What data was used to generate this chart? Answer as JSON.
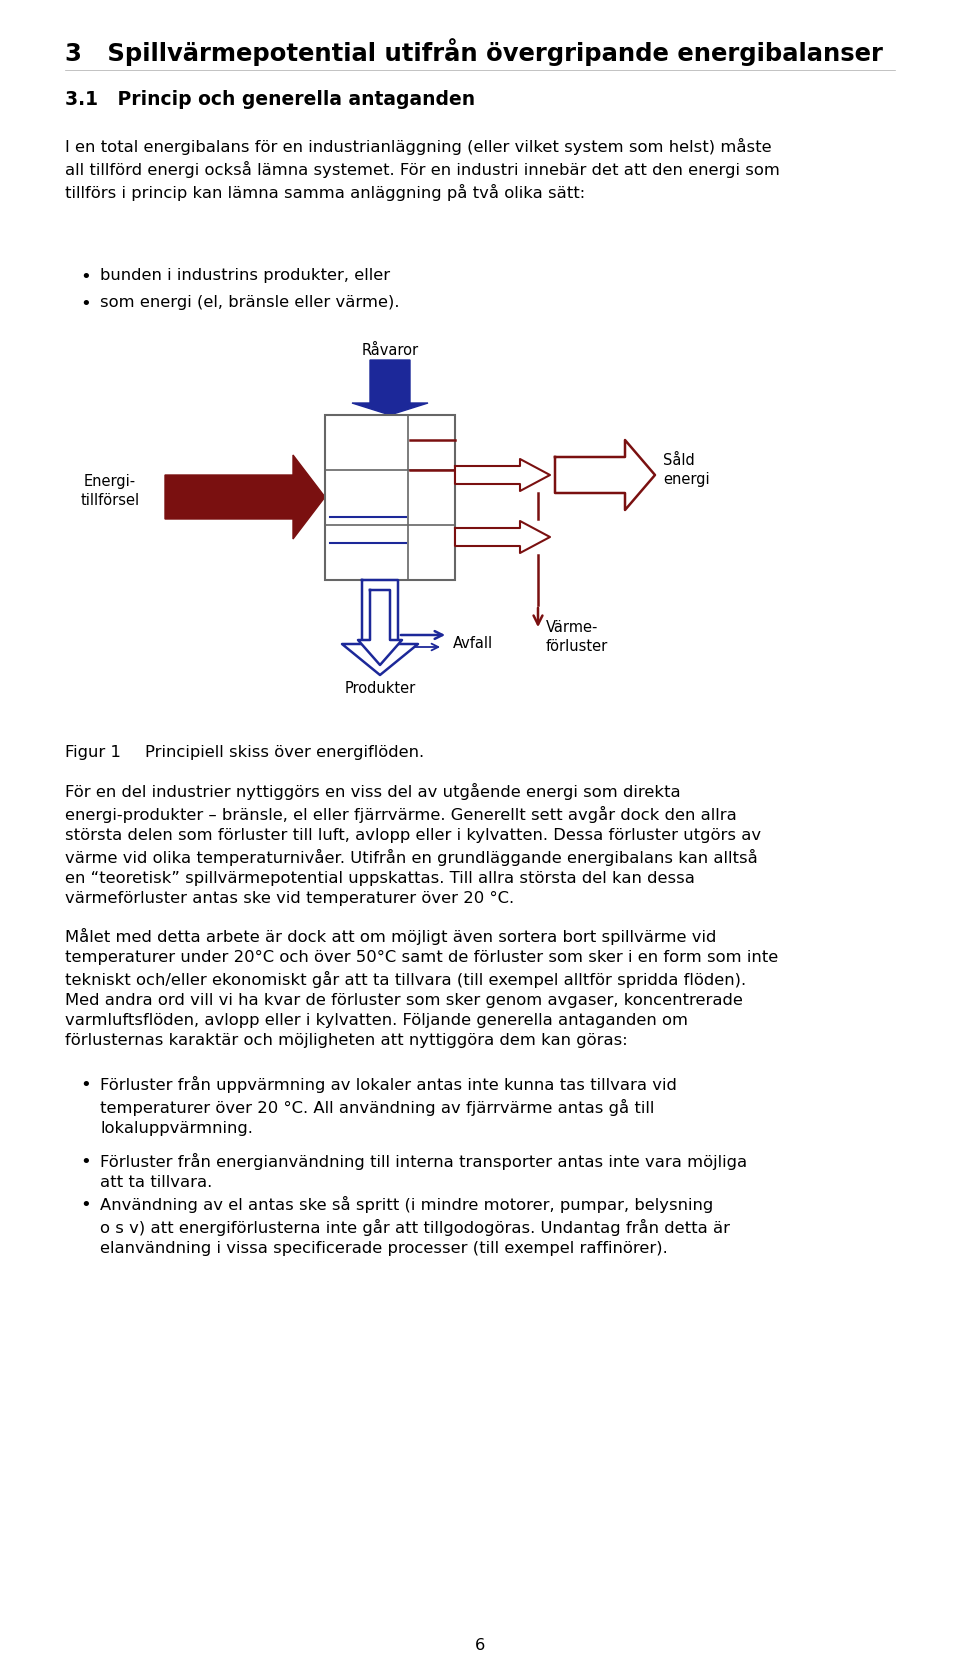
{
  "title": "3   Spillvärmepotential utifrån övergripande energibalanser",
  "section_title": "3.1   Princip och generella antaganden",
  "para1": "I en total energibalans för en industrianläggning (eller vilket system som helst) måste\nall tillförd energi också lämna systemet. För en industri innebär det att den energi som\ntillförs i princip kan lämna samma anläggning på två olika sätt:",
  "bullet1a": "bunden i industrins produkter, eller",
  "bullet1b": "som energi (el, bränsle eller värme).",
  "ravaror_label": "Råvaror",
  "energi_label": "Energi-\ntillförsel",
  "sald_label": "Såld\nenergi",
  "varme_label": "Värme-\nförluster",
  "avfall_label": "Avfall",
  "produkter_label": "Produkter",
  "figur_label": "Figur 1",
  "figur_text": "Principiell skiss över energiflöden.",
  "para2": "För en del industrier nyttiggörs en viss del av utgående energi som direkta\nenergi­produkter – bränsle, el eller fjärrvärme. Generellt sett avgår dock den allra\nstörsta delen som förluster till luft, avlopp eller i kylvatten. Dessa förluster utgörs av\nvärme vid olika temperaturnivåer. Utifrån en grundläggande energibalans kan alltså\nen “teoretisk” spillvärmepotential uppskattas. Till allra största del kan dessa\nvärmeförluster antas ske vid temperaturer över 20 °C.",
  "para3": "Målet med detta arbete är dock att om möjligt även sortera bort spillvärme vid\ntemperaturer under 20°C och över 50°C samt de förluster som sker i en form som inte\ntekniskt och/eller ekonomiskt går att ta tillvara (till exempel alltför spridda flöden).\nMed andra ord vill vi ha kvar de förluster som sker genom avgaser, koncentrerade\nvarmluftsflöden, avlopp eller i kylvatten. Följande generella antaganden om\nförlusternas karaktär och möjligheten att nyttiggöra dem kan göras:",
  "bullet2a": "Förluster från uppvärmning av lokaler antas inte kunna tas tillvara vid\ntemperaturer över 20 °C. All användning av fjärrvärme antas gå till\nlokaluppvärmning.",
  "bullet2b": "Förluster från energianvändning till interna transporter antas inte vara möjliga\natt ta tillvara.",
  "bullet2c": "Användning av el antas ske så spritt (i mindre motorer, pumpar, belysning\no s v) att energiförlusterna inte går att tillgodogöras. Undantag från detta är\nelanvändning i vissa specificerade processer (till exempel raffinörer).",
  "page_number": "6",
  "bg_color": "#ffffff",
  "text_color": "#000000",
  "blue_fill": "#1c2899",
  "dark_red_fill": "#7a1010",
  "box_edge": "#666666"
}
